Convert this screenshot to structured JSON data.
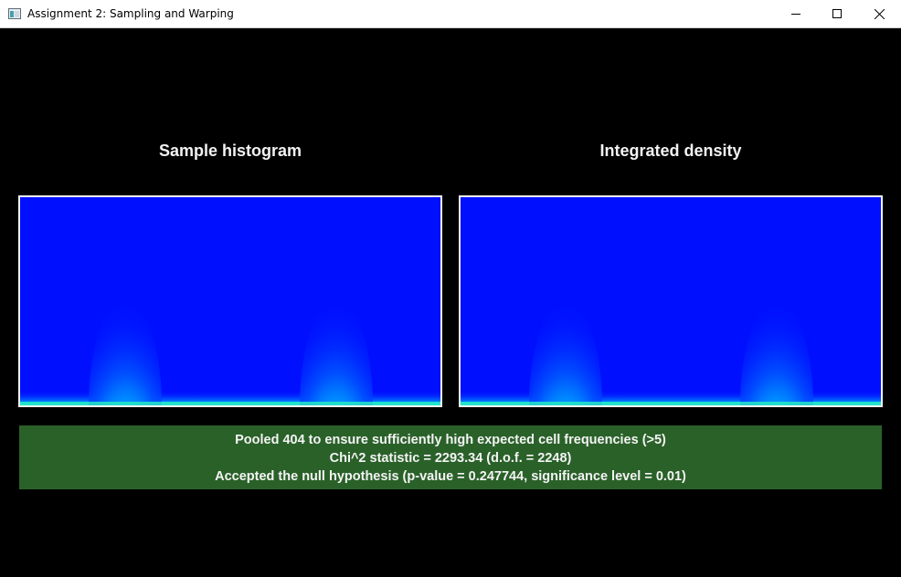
{
  "window": {
    "title": "Assignment 2: Sampling and Warping",
    "icon": "app-window-icon",
    "controls": [
      "minimize-icon",
      "maximize-icon",
      "close-icon"
    ]
  },
  "panels": {
    "left_title": "Sample histogram",
    "right_title": "Integrated density"
  },
  "colors": {
    "background": "#000000",
    "plot_base": "#0010ff",
    "result_box": "#2a6129",
    "text": "#f4f4f4"
  },
  "result": {
    "line1": "Pooled 404 to ensure sufficiently high expected cell frequencies (>5)",
    "line2": "Chi^2 statistic = 2293.34 (d.o.f. = 2248)",
    "line3": "Accepted the null hypothesis (p-value = 0.247744, significance level = 0.01)"
  }
}
